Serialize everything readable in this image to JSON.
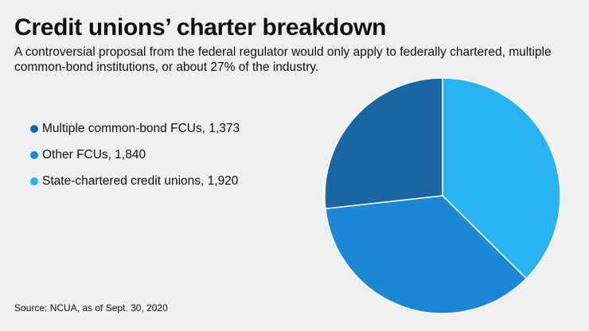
{
  "chart_data": {
    "type": "pie",
    "title": "Credit unions’ charter breakdown",
    "subtitle": "A controversial proposal from the federal regulator would only apply to federally chartered, multiple common-bond institutions, or about 27% of the industry.",
    "slices": [
      {
        "label": "State-chartered credit unions",
        "value": 1920,
        "legend": "State-chartered credit unions, 1,920",
        "color": "#27b3f0"
      },
      {
        "label": "Other FCUs",
        "value": 1840,
        "legend": "Other FCUs, 1,840",
        "color": "#1c87d4"
      },
      {
        "label": "Multiple common-bond FCUs",
        "value": 1373,
        "legend": "Multiple common-bond FCUs, 1,373",
        "color": "#1966a3"
      }
    ],
    "legend_order": [
      2,
      1,
      0
    ],
    "legend_placement": "left",
    "source": "Source: NCUA, as of Sept. 30, 2020"
  }
}
